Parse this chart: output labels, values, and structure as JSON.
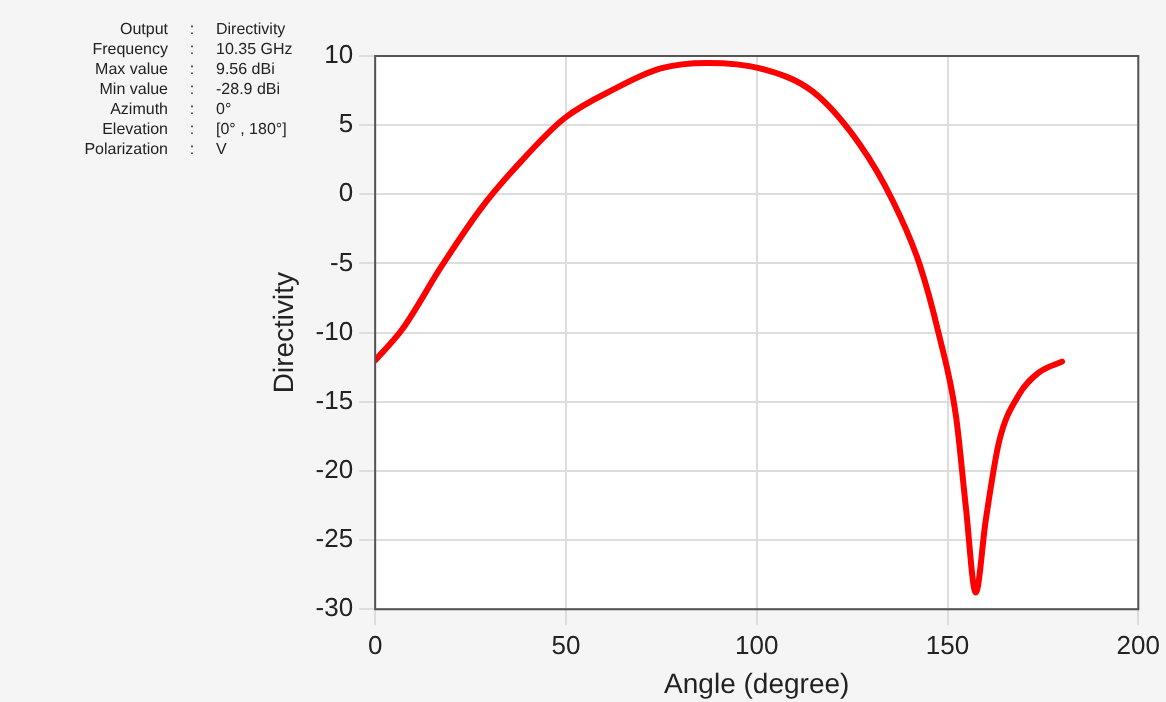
{
  "chart_data": {
    "type": "line",
    "xlabel": "Angle (degree)",
    "ylabel": "Directivity",
    "annotations": [
      "Output : Directivity",
      "Frequency : 10.35 GHz",
      "Max value : 9.56 dBi",
      "Min value : -28.9 dBi",
      "Azimuth : 0°",
      "Elevation : [0° , 180°]",
      "Polarization : V"
    ],
    "series": [
      {
        "color": "#ff0000",
        "x": [
          0,
          7,
          17.4,
          27.8,
          38.3,
          49.6,
          62.6,
          74.8,
          87,
          100.9,
          114.8,
          127,
          135.7,
          142.6,
          147.8,
          152.2,
          154.8,
          157.4,
          160,
          163.5,
          168.7,
          173.9,
          180
        ],
        "values": [
          -12,
          -9.8,
          -5.2,
          -1,
          2.4,
          5.5,
          7.6,
          9.1,
          9.5,
          9.1,
          7.4,
          3.6,
          -0.5,
          -5,
          -10.2,
          -16,
          -22.6,
          -28.8,
          -23.6,
          -17.9,
          -14.5,
          -12.9,
          -12.1
        ]
      }
    ],
    "xlim": [
      0,
      200
    ],
    "xticks": [
      0,
      50,
      100,
      150,
      200
    ],
    "ylim": [
      -30,
      10
    ],
    "yticks": [
      -30,
      -25,
      -20,
      -15,
      -10,
      -5,
      0,
      5,
      10
    ],
    "grid": true,
    "marker": "none",
    "line_style": "solid",
    "legend": false
  }
}
